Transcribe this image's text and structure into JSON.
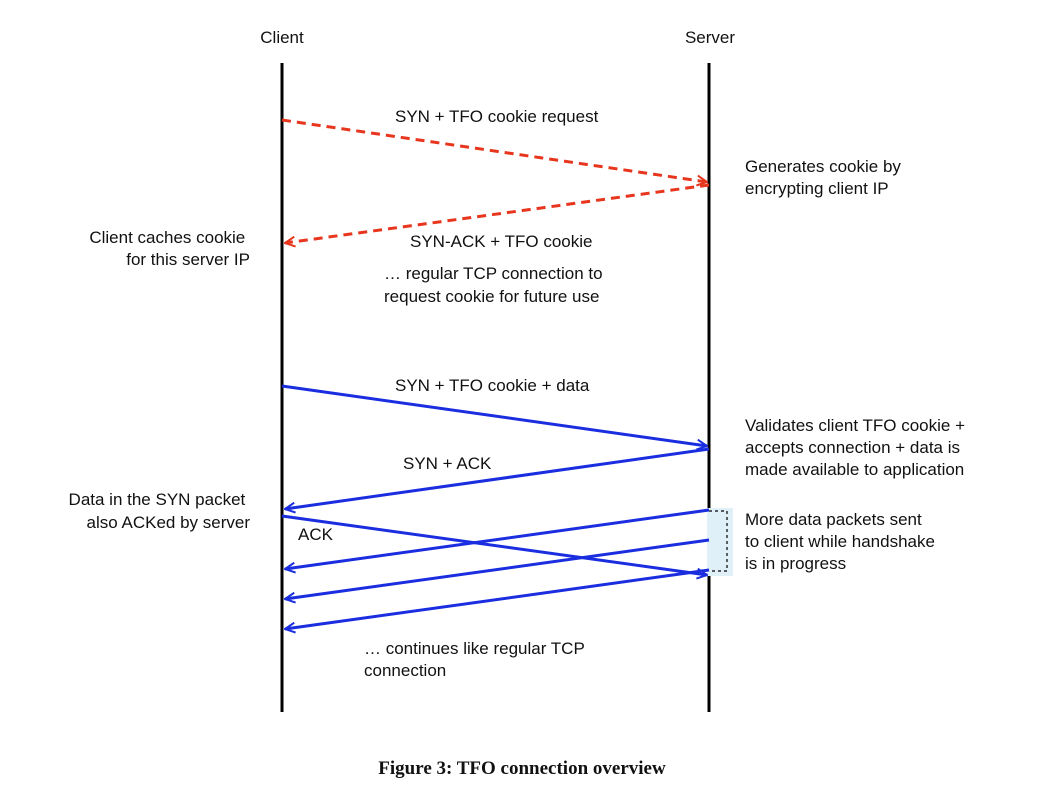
{
  "endpoints": {
    "client": "Client",
    "server": "Server"
  },
  "messages": {
    "syn_cookie_request": "SYN + TFO cookie request",
    "syn_ack_cookie": "SYN-ACK + TFO cookie",
    "syn_cookie_data": "SYN + TFO cookie + data",
    "syn_ack": "SYN + ACK",
    "ack": "ACK"
  },
  "notes": {
    "server_generate": [
      "Generates cookie by",
      "encrypting client IP"
    ],
    "client_cache": [
      "Client caches cookie",
      "for this server IP"
    ],
    "regular_conn": [
      "… regular TCP connection to",
      "request cookie for future use"
    ],
    "server_validate": [
      "Validates client TFO cookie +",
      "accepts connection + data is",
      "made available to application"
    ],
    "client_synack": [
      "Data in the SYN packet",
      "also ACKed by server"
    ],
    "server_more": [
      "More data packets sent",
      "to client while handshake",
      "is in progress"
    ],
    "continues": [
      "… continues like regular TCP",
      "connection"
    ]
  },
  "caption": "Figure 3: TFO connection overview",
  "colors": {
    "cookie_phase": "#e8361e",
    "data_phase": "#1a2ee0",
    "highlight": "#dff0f8",
    "line": "#000000"
  }
}
